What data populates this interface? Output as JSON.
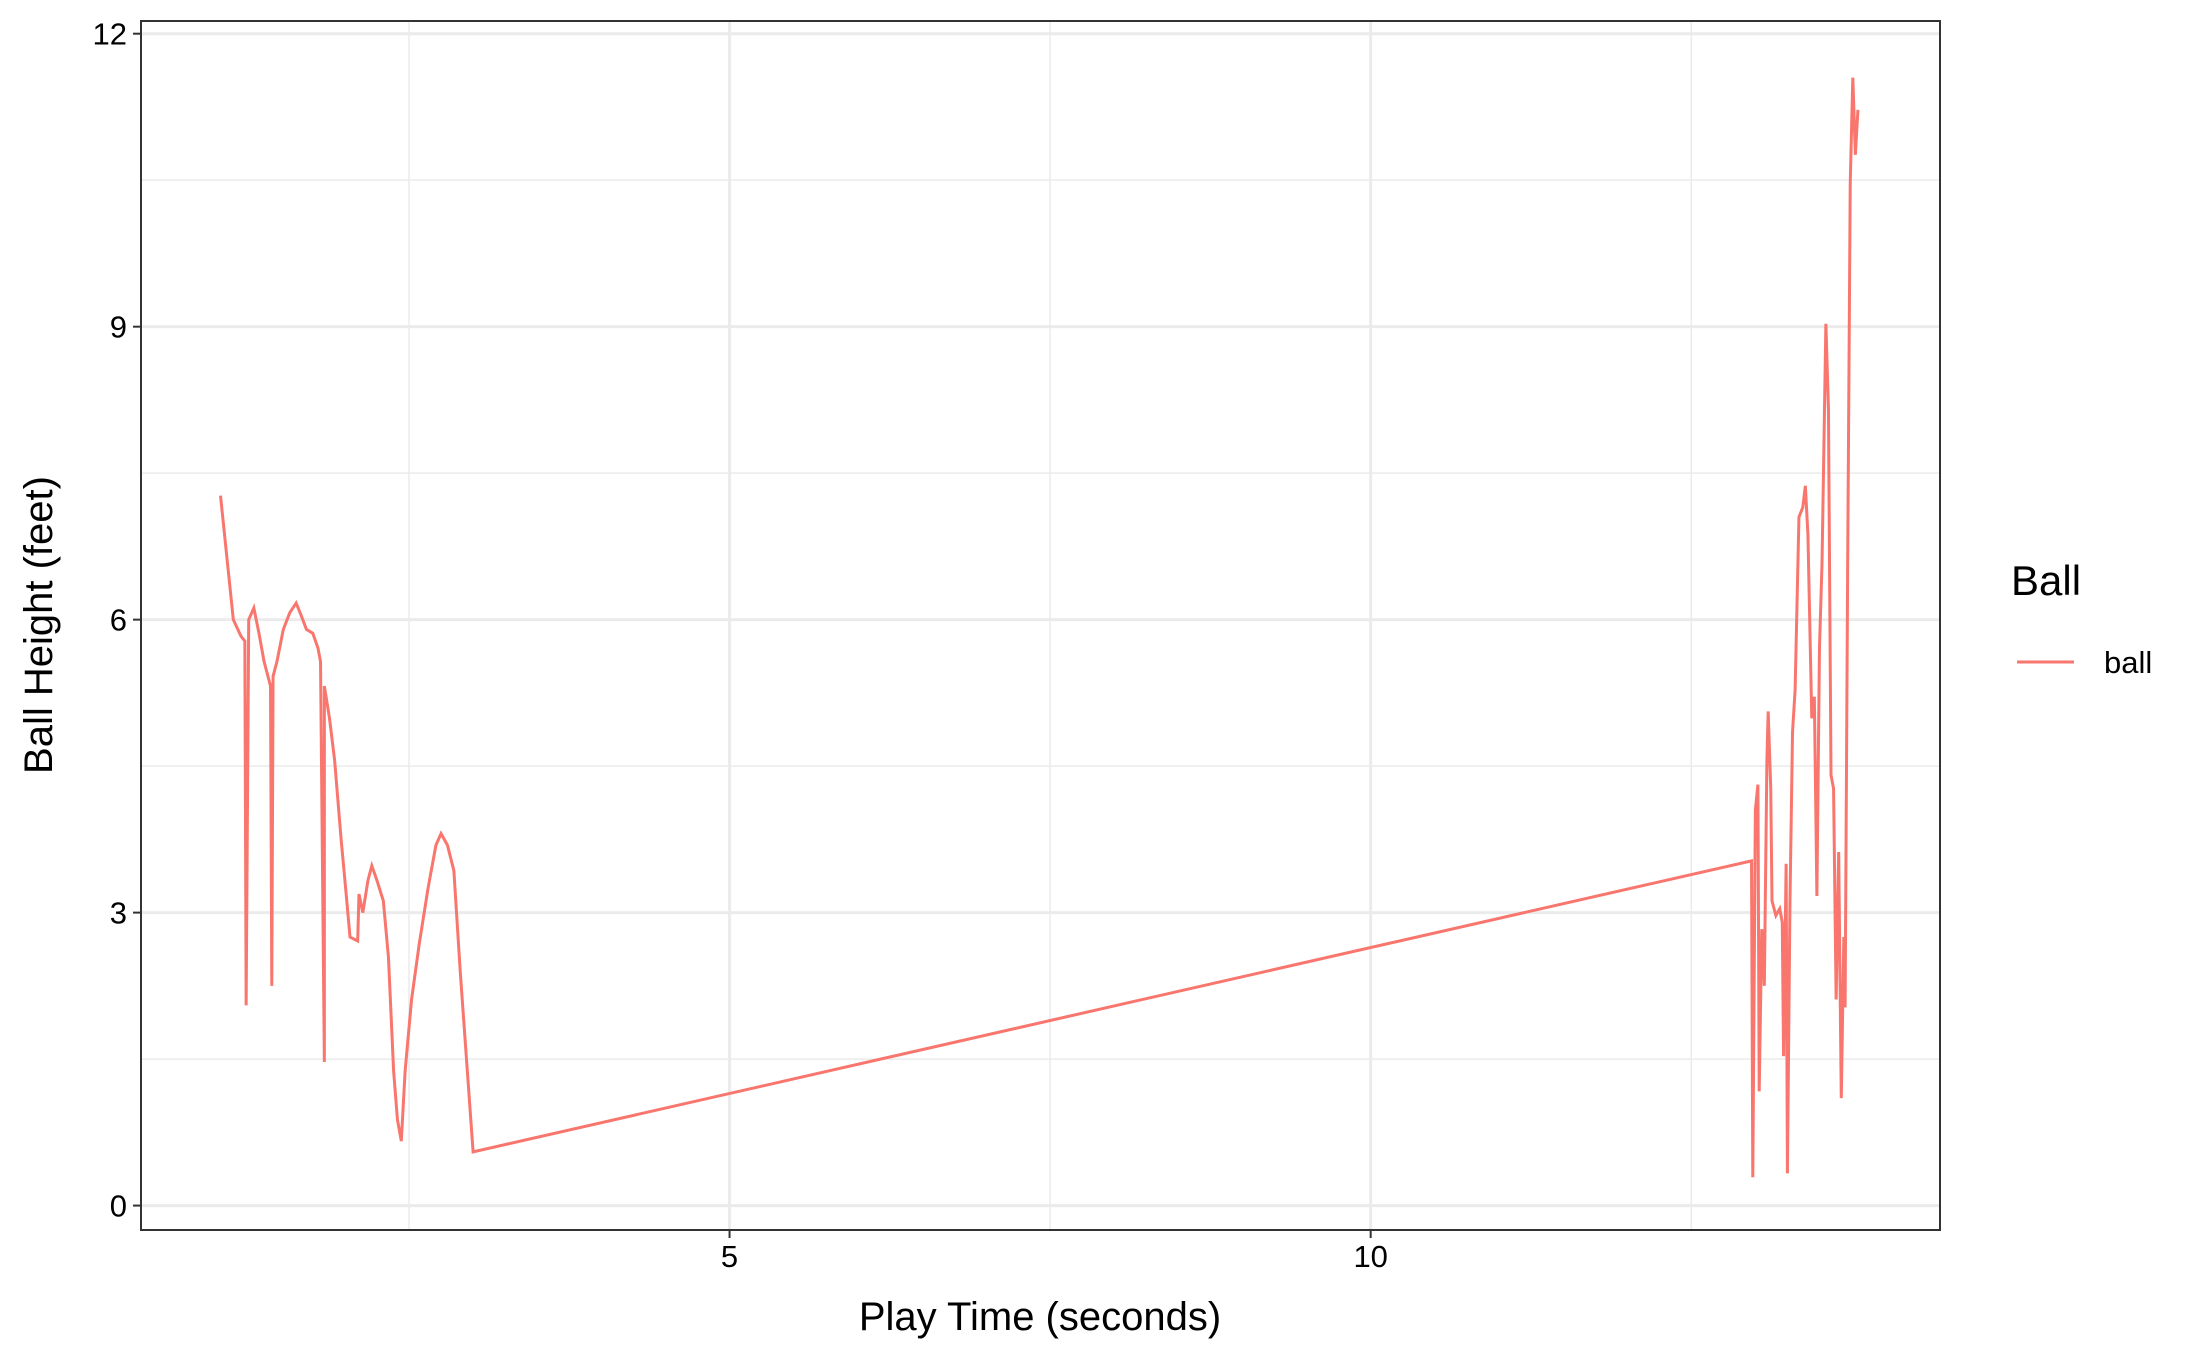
{
  "chart_data": {
    "type": "line",
    "x_label": "Play Time (seconds)",
    "y_label": "Ball Height (feet)",
    "xlim": [
      0.41,
      14.44
    ],
    "xticks": [
      5,
      10
    ],
    "x_minor_grid": [
      2.5,
      7.5,
      12.5
    ],
    "ylim": [
      -0.25,
      12.13
    ],
    "yticks": [
      0,
      3,
      6,
      9,
      12
    ],
    "y_minor_grid": [
      1.5,
      4.5,
      7.5,
      10.5
    ],
    "grid": true,
    "legend_title": "Ball",
    "legend_position": "right",
    "x": [
      1.03,
      1.13,
      1.19,
      1.22,
      1.23,
      1.25,
      1.29,
      1.33,
      1.37,
      1.42,
      1.43,
      1.44,
      1.47,
      1.52,
      1.57,
      1.62,
      1.66,
      1.7,
      1.75,
      1.79,
      1.81,
      1.84,
      1.84,
      1.88,
      1.92,
      1.97,
      2.01,
      2.04,
      2.1,
      2.11,
      2.14,
      2.18,
      2.21,
      2.25,
      2.3,
      2.34,
      2.38,
      2.41,
      2.44,
      2.47,
      2.52,
      2.58,
      2.65,
      2.71,
      2.75,
      2.8,
      2.85,
      2.9,
      3.0,
      12.97,
      12.98,
      13.0,
      13.02,
      13.03,
      13.05,
      13.07,
      13.09,
      13.1,
      13.12,
      13.13,
      13.16,
      13.19,
      13.21,
      13.22,
      13.24,
      13.25,
      13.27,
      13.29,
      13.31,
      13.34,
      13.37,
      13.39,
      13.41,
      13.44,
      13.46,
      13.48,
      13.5,
      13.52,
      13.55,
      13.57,
      13.59,
      13.61,
      13.63,
      13.65,
      13.67,
      13.69,
      13.7,
      13.72,
      13.74,
      13.76,
      13.78,
      13.8
    ],
    "series": [
      {
        "name": "ball",
        "color": "#F8766D",
        "values": [
          7.27,
          6.0,
          5.83,
          5.78,
          2.05,
          6.0,
          6.12,
          5.86,
          5.57,
          5.32,
          2.25,
          5.42,
          5.57,
          5.9,
          6.07,
          6.17,
          6.04,
          5.9,
          5.86,
          5.71,
          5.57,
          1.47,
          5.32,
          4.99,
          4.56,
          3.76,
          3.19,
          2.75,
          2.71,
          3.19,
          3.0,
          3.33,
          3.48,
          3.33,
          3.12,
          2.54,
          1.38,
          0.88,
          0.66,
          1.38,
          2.11,
          2.68,
          3.26,
          3.69,
          3.81,
          3.69,
          3.43,
          2.39,
          0.55,
          3.53,
          0.29,
          4.05,
          4.31,
          1.17,
          2.83,
          2.25,
          4.56,
          5.06,
          4.27,
          3.12,
          2.97,
          3.04,
          2.9,
          1.53,
          3.5,
          0.33,
          3.12,
          4.85,
          5.28,
          7.05,
          7.15,
          7.37,
          6.87,
          4.99,
          5.21,
          3.17,
          5.71,
          6.58,
          9.03,
          8.16,
          4.41,
          4.27,
          2.11,
          3.62,
          1.1,
          2.75,
          2.03,
          6.58,
          10.47,
          11.55,
          10.76,
          11.22
        ]
      }
    ]
  }
}
